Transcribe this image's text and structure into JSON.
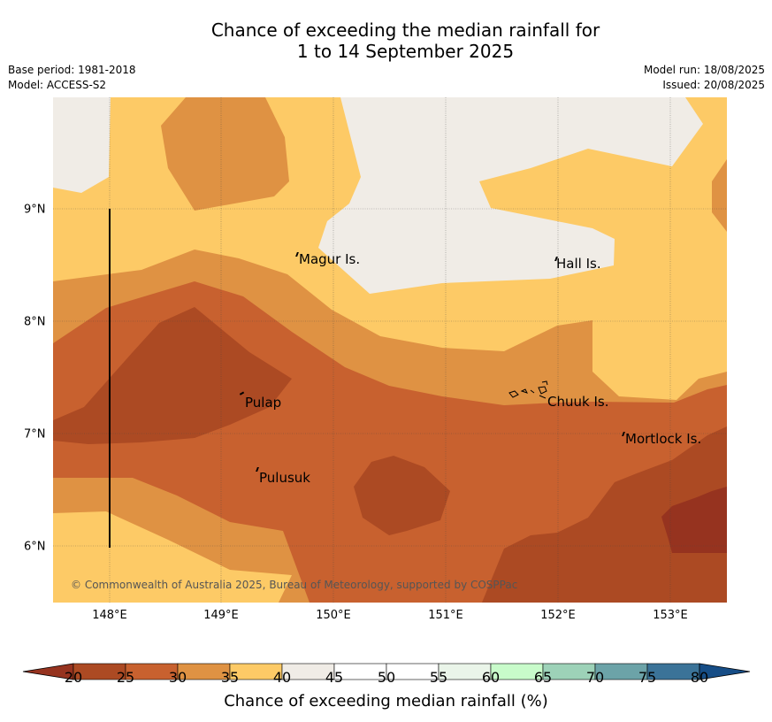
{
  "title_line1": "Chance of exceeding the median rainfall for",
  "title_line2": "1 to 14 September 2025",
  "base_period": "Base period: 1981-2018",
  "model": "Model: ACCESS-S2",
  "model_run": "Model run: 18/08/2025",
  "issued": "Issued: 20/08/2025",
  "places": {
    "magur": "Magur Is.",
    "hall": "Hall Is.",
    "pulap": "Pulap",
    "chuuk": "Chuuk Is.",
    "mortlock": "Mortlock Is.",
    "pulusuk": "Pulusuk"
  },
  "copyright": "© Commonwealth of Australia 2025, Bureau of Meteorology, supported by COSPPac",
  "x_ticks": [
    "148°E",
    "149°E",
    "150°E",
    "151°E",
    "152°E",
    "153°E"
  ],
  "y_ticks": [
    "9°N",
    "8°N",
    "7°N",
    "6°N"
  ],
  "colorbar": {
    "label": "Chance of exceeding median rainfall (%)",
    "ticks": [
      "20",
      "25",
      "30",
      "35",
      "40",
      "45",
      "50",
      "55",
      "60",
      "65",
      "70",
      "75",
      "80"
    ],
    "colors": [
      "#ac4a23",
      "#c8612f",
      "#df9243",
      "#fdca66",
      "#f0ece6",
      "#ffffff",
      "#ffffff",
      "#eaf5e9",
      "#c8fbca",
      "#9dd2b8",
      "#6ca3a8",
      "#3b7398"
    ],
    "under_color": "#96331f",
    "over_color": "#164d86"
  }
}
